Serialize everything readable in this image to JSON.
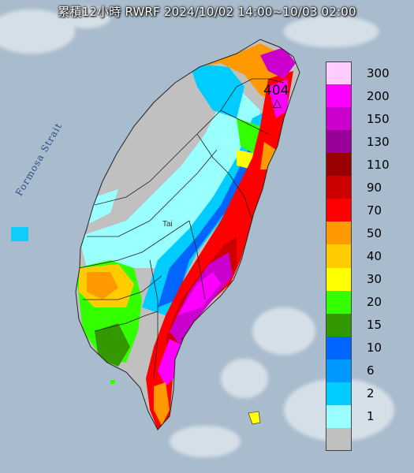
{
  "title": "累積12小時 RWRF 2024/10/02 14:00~10/03 02:00",
  "strait_label": "Formosa Strait",
  "map_label_tai": "Tai",
  "peak": {
    "value": "404",
    "marker": "△"
  },
  "legend": [
    {
      "label": "300",
      "color": "#ffccff"
    },
    {
      "label": "200",
      "color": "#ff00ff"
    },
    {
      "label": "150",
      "color": "#cc00cc"
    },
    {
      "label": "130",
      "color": "#990099"
    },
    {
      "label": "110",
      "color": "#990000"
    },
    {
      "label": "90",
      "color": "#cc0000"
    },
    {
      "label": "70",
      "color": "#ff0000"
    },
    {
      "label": "50",
      "color": "#ff9900"
    },
    {
      "label": "40",
      "color": "#ffcc00"
    },
    {
      "label": "30",
      "color": "#ffff00"
    },
    {
      "label": "20",
      "color": "#33ff00"
    },
    {
      "label": "15",
      "color": "#339900"
    },
    {
      "label": "10",
      "color": "#0066ff"
    },
    {
      "label": "6",
      "color": "#0099ff"
    },
    {
      "label": "2",
      "color": "#00ccff"
    },
    {
      "label": "1",
      "color": "#99ffff"
    },
    {
      "label": "",
      "color": "#c0c0c0"
    }
  ],
  "colors": {
    "sea": "#a9bccd",
    "land": "#c0c0c0"
  }
}
